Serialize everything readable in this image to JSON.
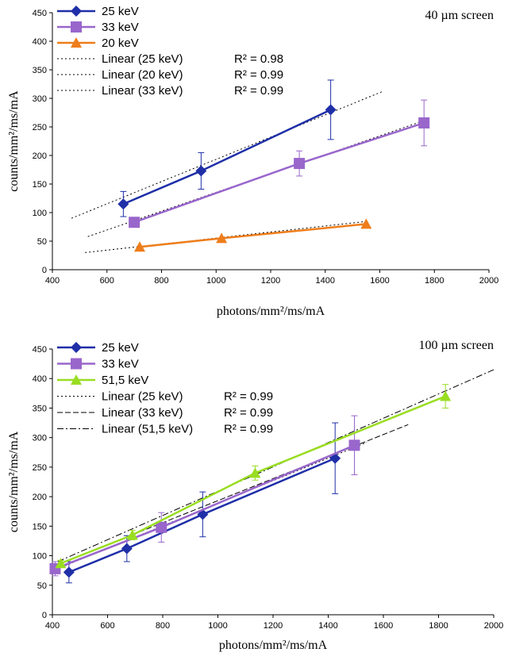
{
  "chart_data": [
    {
      "type": "line",
      "title": "",
      "annotation": "40 µm screen",
      "xlabel": "photons/mm²/ms/mA",
      "ylabel": "counts/mm²/ms/mA",
      "xlim": [
        400,
        2000
      ],
      "ylim": [
        0,
        450
      ],
      "xticks": [
        "400",
        "600",
        "800",
        "1000",
        "1200",
        "1400",
        "1600",
        "1800",
        "2000"
      ],
      "yticks": [
        "0",
        "50",
        "100",
        "150",
        "200",
        "250",
        "300",
        "350",
        "400",
        "450"
      ],
      "grid": false,
      "legend_position": "top-left",
      "series": [
        {
          "name": "25 keV",
          "color": "#1f2fa8",
          "marker": "diamond",
          "x": [
            660,
            945,
            1420
          ],
          "y": [
            115,
            173,
            280
          ],
          "err": [
            22,
            32,
            52
          ]
        },
        {
          "name": "33 keV",
          "color": "#9966cc",
          "marker": "square",
          "x": [
            700,
            1305,
            1762
          ],
          "y": [
            83,
            186,
            257
          ],
          "err": [
            8,
            22,
            40
          ]
        },
        {
          "name": "20 keV",
          "color": "#ee7d1a",
          "marker": "triangle",
          "x": [
            720,
            1020,
            1550
          ],
          "y": [
            40,
            55,
            80
          ],
          "err": [
            0,
            0,
            0
          ]
        }
      ],
      "trendlines": [
        {
          "label": "Linear (25 keV)",
          "r2": "R² = 0.98",
          "style": "dotted",
          "x": [
            470,
            1610
          ],
          "y": [
            90,
            312
          ]
        },
        {
          "label": "Linear (20 keV)",
          "r2": "R² = 0.99",
          "style": "dotted",
          "x": [
            520,
            1560
          ],
          "y": [
            30,
            85
          ]
        },
        {
          "label": "Linear (33 keV)",
          "r2": "R² = 0.99",
          "style": "dotted",
          "x": [
            530,
            1780
          ],
          "y": [
            58,
            264
          ]
        }
      ]
    },
    {
      "type": "line",
      "title": "",
      "annotation": "100 µm screen",
      "xlabel": "photons/mm²/ms/mA",
      "ylabel": "counts/mm²/ms/mA",
      "xlim": [
        400,
        2000
      ],
      "ylim": [
        0,
        450
      ],
      "xticks": [
        "400",
        "600",
        "800",
        "1000",
        "1200",
        "1400",
        "1600",
        "1800",
        "2000"
      ],
      "yticks": [
        "0",
        "50",
        "100",
        "150",
        "200",
        "250",
        "300",
        "350",
        "400",
        "450"
      ],
      "grid": false,
      "legend_position": "top-left",
      "series": [
        {
          "name": "25 keV",
          "color": "#1f2fa8",
          "marker": "diamond",
          "x": [
            460,
            670,
            945,
            1425
          ],
          "y": [
            72,
            112,
            170,
            265
          ],
          "err": [
            18,
            22,
            38,
            60
          ]
        },
        {
          "name": "33 keV",
          "color": "#9966cc",
          "marker": "square",
          "x": [
            410,
            795,
            1495
          ],
          "y": [
            78,
            148,
            287
          ],
          "err": [
            12,
            25,
            50
          ]
        },
        {
          "name": "51,5 keV",
          "color": "#99dd22",
          "marker": "triangle",
          "x": [
            430,
            690,
            1135,
            1825
          ],
          "y": [
            87,
            135,
            240,
            370
          ],
          "err": [
            5,
            8,
            12,
            20
          ]
        }
      ],
      "trendlines": [
        {
          "label": "Linear (25 keV)",
          "r2": "R² = 0.99",
          "style": "dotted",
          "x": [
            420,
            1540
          ],
          "y": [
            78,
            292
          ]
        },
        {
          "label": "Linear (33 keV)",
          "r2": "R² = 0.99",
          "style": "dashed",
          "x": [
            420,
            1690
          ],
          "y": [
            85,
            322
          ]
        },
        {
          "label": "Linear (51,5 keV)",
          "r2": "R² = 0.99",
          "style": "dashdot",
          "x": [
            420,
            2000
          ],
          "y": [
            90,
            415
          ]
        }
      ]
    }
  ]
}
